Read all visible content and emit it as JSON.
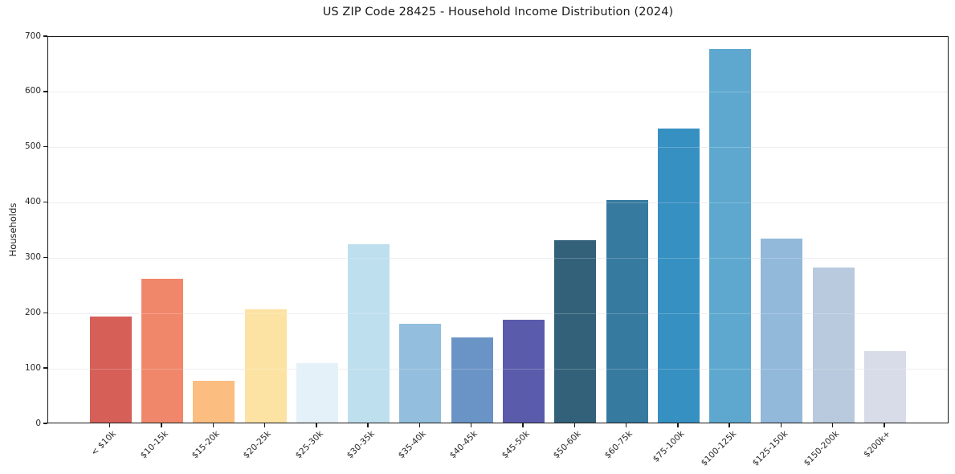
{
  "figure": {
    "title": "US ZIP Code 28425 - Household Income Distribution (2024)"
  },
  "chart_data": {
    "type": "bar",
    "title": "US ZIP Code 28425 - Household Income Distribution (2024)",
    "xlabel": "",
    "ylabel": "Households",
    "ylim": [
      0,
      700
    ],
    "yticks": [
      0,
      100,
      200,
      300,
      400,
      500,
      600,
      700
    ],
    "grid": "horizontal",
    "legend_position": "none",
    "x_tick_rotation_deg": 45,
    "background_color": "#ffffff",
    "gridline_color": "#e9e9ef",
    "axis_color": "#1a1a1a",
    "text_color": "#262626",
    "categories": [
      "< $10k",
      "$10-15k",
      "$15-20k",
      "$20-25k",
      "$25-30k",
      "$30-35k",
      "$35-40k",
      "$40-45k",
      "$45-50k",
      "$50-60k",
      "$60-75k",
      "$75-100k",
      "$100-125k",
      "$125-150k",
      "$150-200k",
      "$200k+"
    ],
    "values": [
      192,
      260,
      76,
      205,
      108,
      322,
      178,
      154,
      186,
      329,
      402,
      531,
      675,
      333,
      281,
      130
    ],
    "bar_colors": [
      "#d65f57",
      "#f0876a",
      "#fbbd80",
      "#fce3a3",
      "#e4f1f8",
      "#bedfee",
      "#93bedd",
      "#6b94c6",
      "#5b5bac",
      "#34617a",
      "#377a9f",
      "#3790c2",
      "#5ea8cf",
      "#92b8da",
      "#b9cade",
      "#d8dbe8"
    ]
  }
}
